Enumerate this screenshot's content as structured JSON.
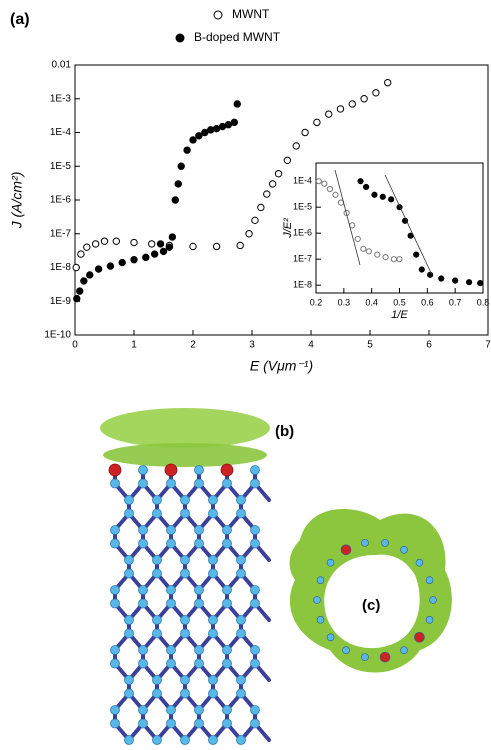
{
  "panels": {
    "a": "(a)",
    "b": "(b)",
    "c": "(c)"
  },
  "chart_data": [
    {
      "type": "scatter",
      "log_y": true,
      "xlabel": "E (Vμm⁻¹)",
      "ylabel": "J (A/cm²)",
      "xlim": [
        0,
        7
      ],
      "xticks": [
        0,
        1,
        2,
        3,
        4,
        5,
        6,
        7
      ],
      "ylim": [
        1e-10,
        0.01
      ],
      "yticks": [
        {
          "value": 1e-10,
          "label": "1E-10"
        },
        {
          "value": 1e-09,
          "label": "1E-9"
        },
        {
          "value": 1e-08,
          "label": "1E-8"
        },
        {
          "value": 1e-07,
          "label": "1E-7"
        },
        {
          "value": 1e-06,
          "label": "1E-6"
        },
        {
          "value": 1e-05,
          "label": "1E-5"
        },
        {
          "value": 0.0001,
          "label": "1E-4"
        },
        {
          "value": 0.001,
          "label": "1E-3"
        },
        0.01
      ],
      "legend": "top",
      "series": [
        {
          "name": "MWNT",
          "color": "#000000",
          "marker": "open",
          "x": [
            0.02,
            0.1,
            0.2,
            0.35,
            0.5,
            0.7,
            1.0,
            1.3,
            1.6,
            2.0,
            2.4,
            2.8,
            2.95,
            3.05,
            3.15,
            3.25,
            3.35,
            3.45,
            3.6,
            3.75,
            3.9,
            4.1,
            4.3,
            4.5,
            4.7,
            4.9,
            5.1,
            5.3
          ],
          "values": [
            1e-08,
            2.5e-08,
            4e-08,
            5e-08,
            6e-08,
            6e-08,
            5.5e-08,
            5e-08,
            4.5e-08,
            4.2e-08,
            4.2e-08,
            4.5e-08,
            1e-07,
            2.5e-07,
            6e-07,
            1.5e-06,
            3e-06,
            6e-06,
            1.5e-05,
            4e-05,
            0.0001,
            0.0002,
            0.00035,
            0.0005,
            0.0007,
            0.001,
            0.0015,
            0.003
          ]
        },
        {
          "name": "B-doped MWNT",
          "color": "#000000",
          "marker": "filled",
          "x": [
            0.03,
            0.08,
            0.15,
            0.25,
            0.4,
            0.6,
            0.8,
            1.0,
            1.2,
            1.35,
            1.45,
            1.5,
            1.6,
            1.65,
            1.7,
            1.75,
            1.8,
            1.9,
            2.0,
            2.1,
            2.2,
            2.3,
            2.4,
            2.5,
            2.6,
            2.7,
            2.75
          ],
          "values": [
            1.2e-09,
            2e-09,
            4e-09,
            6e-09,
            9e-09,
            1.1e-08,
            1.4e-08,
            1.7e-08,
            2e-08,
            2.5e-08,
            5e-08,
            3e-08,
            4e-08,
            8e-08,
            1e-06,
            3e-06,
            1e-05,
            3e-05,
            6e-05,
            8e-05,
            0.0001,
            0.00012,
            0.00013,
            0.00015,
            0.00017,
            0.0002,
            0.0007
          ]
        }
      ]
    },
    {
      "type": "scatter",
      "log_y": true,
      "xlabel": "1/E",
      "ylabel": "J/E²",
      "xlim": [
        0.2,
        0.8
      ],
      "xticks": [
        0.2,
        0.3,
        0.4,
        0.5,
        0.6,
        0.7,
        0.8
      ],
      "ylim": [
        5e-09,
        0.0005
      ],
      "yticks": [
        {
          "value": 1e-08,
          "label": "1E-8"
        },
        {
          "value": 1e-07,
          "label": "1E-7"
        },
        {
          "value": 1e-06,
          "label": "1E-6"
        },
        {
          "value": 1e-05,
          "label": "1E-5"
        },
        {
          "value": 0.0001,
          "label": "1E-4"
        }
      ],
      "series": [
        {
          "name": "MWNT",
          "color": "#777777",
          "marker": "open",
          "x": [
            0.21,
            0.23,
            0.25,
            0.27,
            0.29,
            0.31,
            0.33,
            0.35,
            0.37,
            0.39,
            0.42,
            0.45,
            0.48,
            0.5
          ],
          "values": [
            0.0001,
            8e-05,
            5e-05,
            3e-05,
            1.5e-05,
            6e-06,
            2e-06,
            6e-07,
            2.5e-07,
            2e-07,
            1.5e-07,
            1.2e-07,
            1e-07,
            1e-07
          ]
        },
        {
          "name": "B-doped MWNT",
          "color": "#000000",
          "marker": "filled",
          "x": [
            0.36,
            0.38,
            0.41,
            0.44,
            0.47,
            0.5,
            0.52,
            0.54,
            0.56,
            0.58,
            0.61,
            0.65,
            0.7,
            0.75,
            0.79
          ],
          "values": [
            0.0001,
            6e-05,
            3e-05,
            2.5e-05,
            2e-05,
            1e-05,
            3e-06,
            8e-07,
            1.5e-07,
            4e-08,
            2.5e-08,
            1.8e-08,
            1.5e-08,
            1.3e-08,
            1.2e-08
          ]
        }
      ]
    }
  ]
}
